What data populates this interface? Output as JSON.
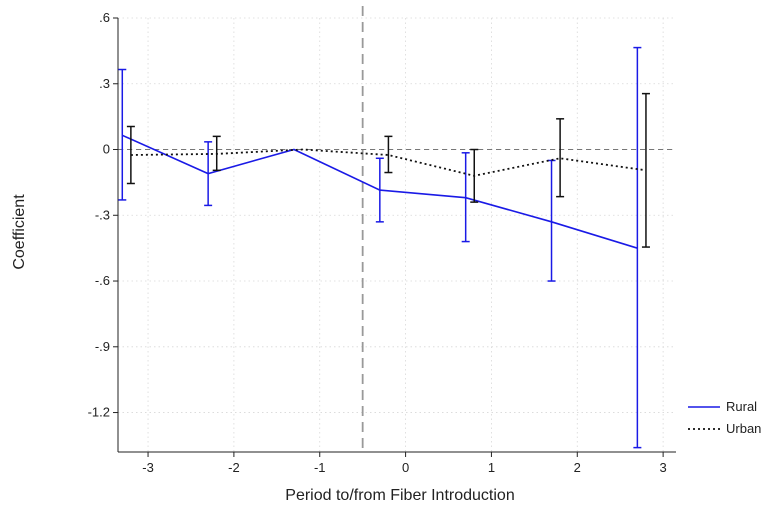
{
  "chart_data": {
    "type": "line",
    "title": "",
    "xlabel": "Period to/from Fiber Introduction",
    "ylabel": "Coefficient",
    "xlim": [
      -3.35,
      3.15
    ],
    "ylim": [
      -1.38,
      0.6
    ],
    "x_ticks": [
      -3,
      -2,
      -1,
      0,
      1,
      2,
      3
    ],
    "x_tick_labels": [
      "-3",
      "-2",
      "-1",
      "0",
      "1",
      "2",
      "3"
    ],
    "y_ticks": [
      0.6,
      0.3,
      0,
      -0.3,
      -0.6,
      -0.9,
      -1.2
    ],
    "y_tick_labels": [
      ".6",
      ".3",
      "0",
      "-.3",
      "-.6",
      "-.9",
      "-1.2"
    ],
    "grid": true,
    "reference_lines": {
      "horizontal_y": 0,
      "vertical_x": -0.5
    },
    "legend_position": "bottom-right",
    "series": [
      {
        "name": "Rural",
        "color": "#1a1ae6",
        "style": "solid",
        "x": [
          -3.3,
          -2.3,
          -1.3,
          -0.3,
          0.7,
          1.7,
          2.7
        ],
        "y": [
          0.065,
          -0.11,
          0.0,
          -0.185,
          -0.22,
          -0.33,
          -0.45
        ],
        "ci_low": [
          -0.23,
          -0.255,
          null,
          -0.33,
          -0.42,
          -0.6,
          -1.36
        ],
        "ci_high": [
          0.365,
          0.035,
          null,
          -0.04,
          -0.015,
          -0.05,
          0.465
        ]
      },
      {
        "name": "Urban",
        "color": "#111111",
        "style": "dotted",
        "x": [
          -3.2,
          -2.2,
          -1.2,
          -0.2,
          0.8,
          1.8,
          2.8
        ],
        "y": [
          -0.025,
          -0.02,
          0.0,
          -0.025,
          -0.12,
          -0.04,
          -0.095
        ],
        "ci_low": [
          -0.155,
          -0.095,
          null,
          -0.105,
          -0.24,
          -0.215,
          -0.445
        ],
        "ci_high": [
          0.105,
          0.06,
          null,
          0.06,
          0.0,
          0.14,
          0.255
        ]
      }
    ]
  }
}
